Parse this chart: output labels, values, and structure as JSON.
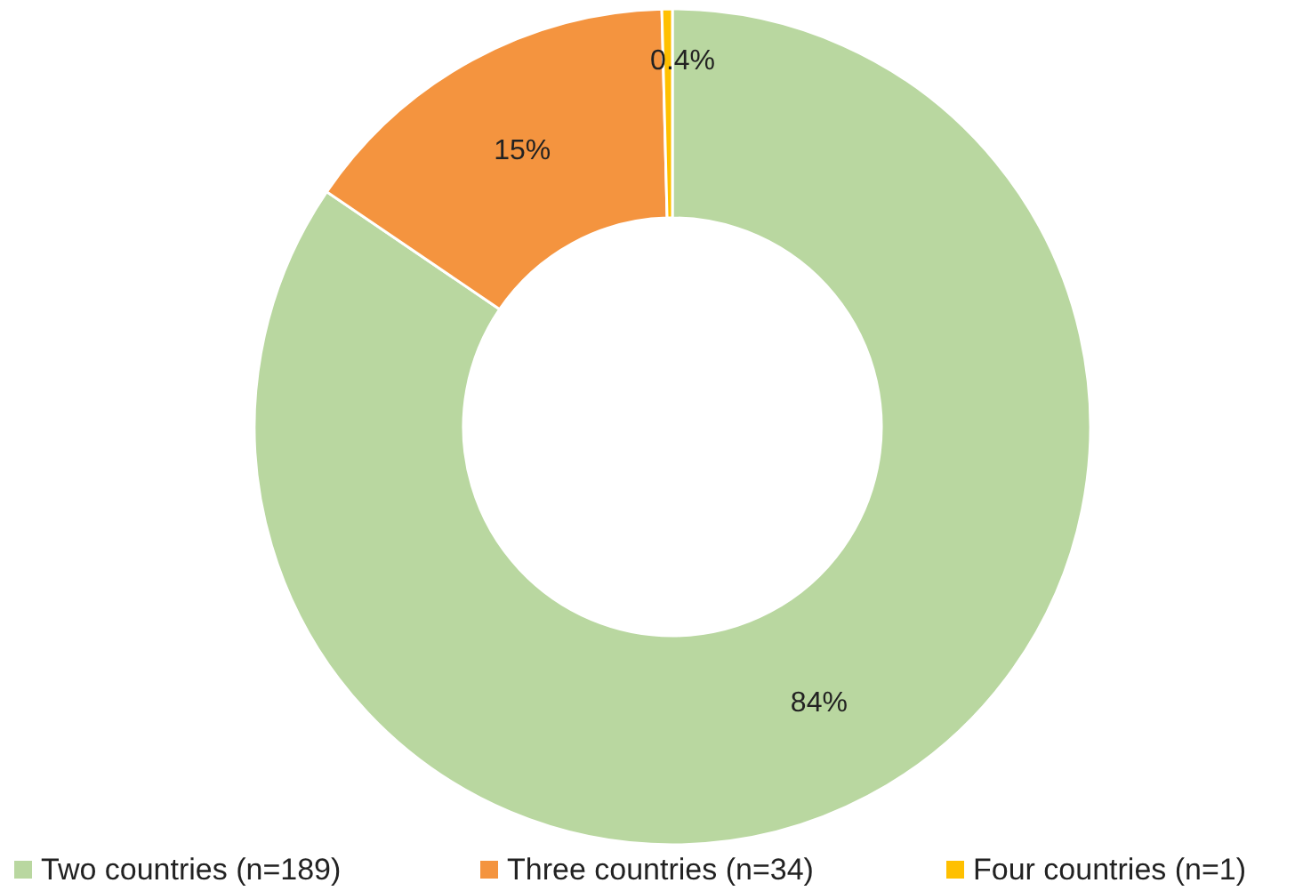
{
  "chart_data": {
    "type": "donut",
    "categories": [
      "Two countries (n=189)",
      "Three countries (n=34)",
      "Four countries (n=1)"
    ],
    "values": [
      84,
      15,
      0.4
    ],
    "colors": [
      "#b9d7a0",
      "#f4943f",
      "#ffc000"
    ],
    "value_labels": [
      "84%",
      "15%",
      "0.4%"
    ],
    "legend": "bottom"
  }
}
